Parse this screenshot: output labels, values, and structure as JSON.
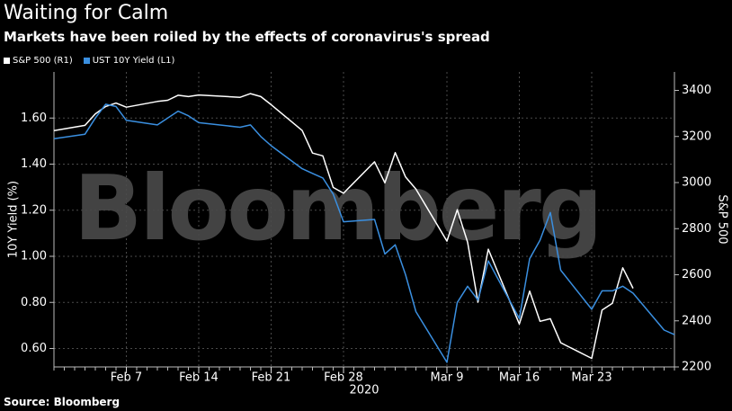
{
  "title": "Waiting for Calm",
  "subtitle": "Markets have been roiled by the effects of coronavirus's spread",
  "legend": [
    {
      "label": "S&P 500 (R1)",
      "color": "#ffffff"
    },
    {
      "label": "UST 10Y Yield (L1)",
      "color": "#3a8fe0"
    }
  ],
  "watermark": "Bloomberg",
  "footer": "Source: Bloomberg",
  "chart_data": {
    "type": "line",
    "x": [
      "2020-01-31",
      "2020-02-03",
      "2020-02-04",
      "2020-02-05",
      "2020-02-06",
      "2020-02-07",
      "2020-02-10",
      "2020-02-11",
      "2020-02-12",
      "2020-02-13",
      "2020-02-14",
      "2020-02-18",
      "2020-02-19",
      "2020-02-20",
      "2020-02-21",
      "2020-02-24",
      "2020-02-25",
      "2020-02-26",
      "2020-02-27",
      "2020-02-28",
      "2020-03-02",
      "2020-03-03",
      "2020-03-04",
      "2020-03-05",
      "2020-03-06",
      "2020-03-09",
      "2020-03-10",
      "2020-03-11",
      "2020-03-12",
      "2020-03-13",
      "2020-03-16",
      "2020-03-17",
      "2020-03-18",
      "2020-03-19",
      "2020-03-20",
      "2020-03-23",
      "2020-03-24",
      "2020-03-25",
      "2020-03-26",
      "2020-03-27",
      "2020-03-30",
      "2020-03-31"
    ],
    "series": [
      {
        "name": "S&P 500 (R1)",
        "axis": "right",
        "color": "#ffffff",
        "values": [
          3225,
          3248,
          3298,
          3330,
          3345,
          3327,
          3352,
          3357,
          3379,
          3373,
          3380,
          3370,
          3386,
          3373,
          3338,
          3226,
          3128,
          3116,
          2979,
          2954,
          3090,
          2999,
          3130,
          3024,
          2972,
          2746,
          2882,
          2741,
          2481,
          2711,
          2386,
          2529,
          2398,
          2409,
          2305,
          2237,
          2447,
          2476,
          2630,
          2541,
          null,
          null
        ]
      },
      {
        "name": "UST 10Y Yield (L1)",
        "axis": "left",
        "color": "#3a8fe0",
        "values": [
          1.51,
          1.53,
          1.6,
          1.66,
          1.65,
          1.59,
          1.57,
          1.6,
          1.63,
          1.61,
          1.58,
          1.56,
          1.57,
          1.52,
          1.48,
          1.38,
          1.36,
          1.34,
          1.27,
          1.15,
          1.16,
          1.01,
          1.05,
          0.92,
          0.76,
          0.54,
          0.8,
          0.87,
          0.81,
          0.98,
          0.73,
          0.99,
          1.07,
          1.19,
          0.94,
          0.77,
          0.85,
          0.85,
          0.87,
          0.84,
          0.68,
          0.66
        ]
      }
    ],
    "x_tick_labels": [
      "Feb 7",
      "Feb 14",
      "Feb 21",
      "Feb 28",
      "Mar 9",
      "Mar 16",
      "Mar 23"
    ],
    "x_tick_dates": [
      "2020-02-07",
      "2020-02-14",
      "2020-02-21",
      "2020-02-28",
      "2020-03-09",
      "2020-03-16",
      "2020-03-23"
    ],
    "x_year_label": "2020",
    "y_left": {
      "label": "10Y Yield (%)",
      "ticks": [
        "0.60",
        "0.80",
        "1.00",
        "1.20",
        "1.40",
        "1.60"
      ],
      "range": [
        0.52,
        1.8
      ]
    },
    "y_right": {
      "label": "S&P 500",
      "ticks": [
        "2200",
        "2400",
        "2600",
        "2800",
        "3000",
        "3200",
        "3400"
      ],
      "range": [
        2200,
        3480
      ]
    },
    "grid": true,
    "legend_position": "top-left"
  }
}
